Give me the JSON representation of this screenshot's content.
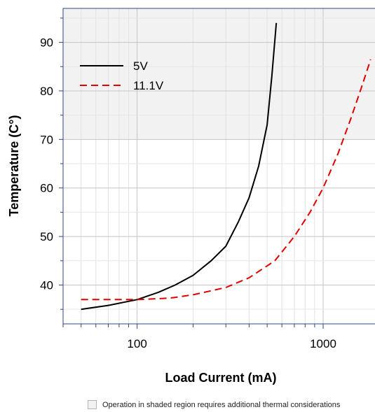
{
  "chart_data": {
    "type": "line",
    "xlabel": "Load Current (mA)",
    "ylabel": "Temperature (C°)",
    "x_scale": "log",
    "xlim": [
      40,
      1900
    ],
    "ylim": [
      32,
      97
    ],
    "x_ticks": [
      100,
      1000
    ],
    "y_ticks": [
      40,
      50,
      60,
      70,
      80,
      90
    ],
    "grid": true,
    "legend_position": "top-left",
    "shaded_region": {
      "y_from": 70,
      "y_to": 97,
      "color": "#f2f2f2"
    },
    "series": [
      {
        "name": "5V",
        "color": "#000000",
        "dash": "solid",
        "x": [
          50,
          70,
          100,
          130,
          160,
          200,
          250,
          300,
          350,
          400,
          450,
          500,
          530,
          560
        ],
        "y": [
          35,
          35.8,
          37,
          38.5,
          40,
          42,
          45,
          48,
          53,
          58,
          64.5,
          73,
          83,
          94
        ]
      },
      {
        "name": "11.1V",
        "color": "#e00000",
        "dash": "dashed",
        "x": [
          50,
          100,
          150,
          200,
          300,
          400,
          550,
          700,
          850,
          1000,
          1200,
          1400,
          1600,
          1800
        ],
        "y": [
          37,
          37,
          37.3,
          38,
          39.5,
          41.5,
          45,
          50,
          55,
          60,
          67,
          74,
          80.5,
          86.5
        ]
      }
    ]
  },
  "note": {
    "text": "Operation in shaded region requires additional thermal considerations"
  }
}
